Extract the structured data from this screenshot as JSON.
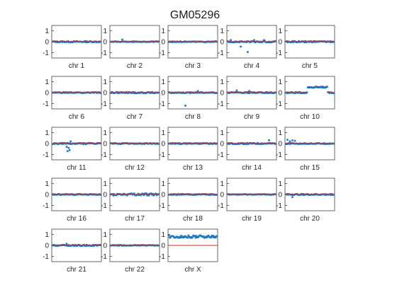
{
  "figure": {
    "title": "GM05296"
  },
  "colors": {
    "points": "#1f77c0",
    "fit_line": "#d62728",
    "axes": "#262626",
    "background": "#ffffff"
  },
  "chart_data": {
    "type": "scatter",
    "title": "GM05296",
    "ylim": [
      -1.5,
      1.5
    ],
    "yticks": [
      "1",
      "0",
      "-1"
    ],
    "grid": false,
    "panels": [
      {
        "xlabel": "chr  1",
        "level": 0.0,
        "spread": 0.05,
        "outliers": []
      },
      {
        "xlabel": "chr  2",
        "level": 0.0,
        "spread": 0.03,
        "outliers": [
          [
            0.25,
            0.2
          ]
        ]
      },
      {
        "xlabel": "chr  3",
        "level": 0.0,
        "spread": 0.04,
        "outliers": []
      },
      {
        "xlabel": "chr  4",
        "level": 0.0,
        "spread": 0.06,
        "outliers": [
          [
            0.08,
            0.15
          ],
          [
            0.28,
            -0.45
          ],
          [
            0.42,
            -0.95
          ],
          [
            0.55,
            0.15
          ],
          [
            0.75,
            0.15
          ]
        ]
      },
      {
        "xlabel": "chr  5",
        "level": 0.0,
        "spread": 0.06,
        "outliers": []
      },
      {
        "xlabel": "chr  6",
        "level": 0.0,
        "spread": 0.04,
        "outliers": []
      },
      {
        "xlabel": "chr  7",
        "level": 0.0,
        "spread": 0.06,
        "outliers": []
      },
      {
        "xlabel": "chr  8",
        "level": 0.0,
        "spread": 0.04,
        "outliers": [
          [
            0.35,
            -1.2
          ],
          [
            0.6,
            0.15
          ]
        ]
      },
      {
        "xlabel": "chr  9",
        "level": 0.0,
        "spread": 0.05,
        "outliers": [
          [
            0.2,
            0.2
          ],
          [
            0.45,
            0.15
          ]
        ]
      },
      {
        "xlabel": "chr 10",
        "level": 0.0,
        "spread": 0.05,
        "segments": [
          [
            0.45,
            0.85,
            0.5
          ]
        ]
      },
      {
        "xlabel": "chr 11",
        "level": 0.0,
        "spread": 0.06,
        "outliers": [
          [
            0.32,
            -0.7
          ],
          [
            0.36,
            -0.6
          ],
          [
            0.34,
            -0.4
          ],
          [
            0.38,
            0.2
          ],
          [
            0.3,
            -0.3
          ]
        ]
      },
      {
        "xlabel": "chr 12",
        "level": 0.0,
        "spread": 0.04,
        "outliers": []
      },
      {
        "xlabel": "chr 13",
        "level": 0.0,
        "spread": 0.04,
        "outliers": []
      },
      {
        "xlabel": "chr 14",
        "level": 0.0,
        "spread": 0.05,
        "outliers": [
          [
            0.85,
            0.3
          ]
        ]
      },
      {
        "xlabel": "chr 15",
        "level": 0.0,
        "spread": 0.04,
        "outliers": [
          [
            0.05,
            0.35
          ],
          [
            0.1,
            0.2
          ],
          [
            0.2,
            0.25
          ],
          [
            0.15,
            0.3
          ]
        ]
      },
      {
        "xlabel": "chr 16",
        "level": 0.0,
        "spread": 0.04,
        "outliers": []
      },
      {
        "xlabel": "chr 17",
        "level": 0.0,
        "spread": 0.1,
        "outliers": []
      },
      {
        "xlabel": "chr 18",
        "level": 0.0,
        "spread": 0.04,
        "outliers": []
      },
      {
        "xlabel": "chr 19",
        "level": 0.0,
        "spread": 0.03,
        "outliers": []
      },
      {
        "xlabel": "chr 20",
        "level": 0.0,
        "spread": 0.05,
        "outliers": [
          [
            0.15,
            -0.25
          ]
        ]
      },
      {
        "xlabel": "chr 21",
        "level": 0.0,
        "spread": 0.05,
        "outliers": [
          [
            0.3,
            0.15
          ]
        ]
      },
      {
        "xlabel": "chr 22",
        "level": 0.0,
        "spread": 0.03,
        "outliers": []
      },
      {
        "xlabel": "chr X",
        "level": 0.8,
        "spread": 0.12,
        "fit": 0.0,
        "outliers": []
      }
    ]
  }
}
